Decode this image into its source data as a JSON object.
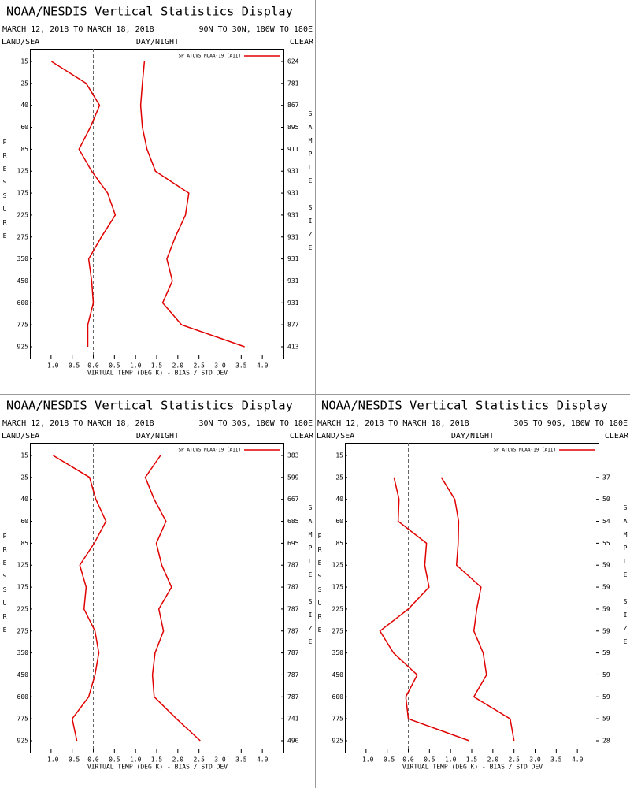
{
  "chart_data": [
    {
      "type": "line",
      "title": "NOAA/NESDIS Vertical Statistics Display",
      "subtitle": "MARCH 12, 2018 TO MARCH 18, 2018",
      "region": "90N TO 30N, 180W TO 180E",
      "land_sea": "LAND/SEA",
      "day_night": "DAY/NIGHT",
      "clear": "CLEAR",
      "xlabel": "VIRTUAL TEMP (DEG K) - BIAS / STD DEV",
      "ylabel": "PRESSURE",
      "y2label": "SAMPLE SIZE",
      "categories": [
        15,
        25,
        40,
        60,
        85,
        125,
        175,
        225,
        275,
        350,
        450,
        600,
        775,
        925
      ],
      "sample_size": [
        624,
        781,
        867,
        895,
        911,
        931,
        931,
        931,
        931,
        931,
        931,
        931,
        877,
        413
      ],
      "series": [
        {
          "name": "SP ATOVS NOAA-19 (A11)",
          "color": "#e00000",
          "bias": [
            -0.99,
            -0.17,
            0.15,
            -0.07,
            -0.34,
            -0.04,
            0.34,
            0.52,
            0.19,
            -0.11,
            -0.04,
            0.0,
            -0.13,
            -0.13
          ],
          "std_dev": [
            1.21,
            1.16,
            1.12,
            1.16,
            1.27,
            1.47,
            2.26,
            2.18,
            1.94,
            1.74,
            1.87,
            1.64,
            2.09,
            3.58
          ]
        }
      ],
      "xlim": [
        -1.5,
        4.5
      ],
      "xticks": [
        {
          "value": -1,
          "label": "-1.0"
        },
        -0.5,
        {
          "value": 0,
          "label": "0.0"
        },
        0.5,
        {
          "value": 1,
          "label": "1.0"
        },
        1.5,
        {
          "value": 2,
          "label": "2.0"
        },
        2.5,
        {
          "value": 3,
          "label": "3.0"
        },
        3.5,
        {
          "value": 4,
          "label": "4.0"
        }
      ],
      "zero_line": true
    },
    {
      "type": "line",
      "title": "NOAA/NESDIS Vertical Statistics Display",
      "subtitle": "MARCH 12, 2018 TO MARCH 18, 2018",
      "region": "30N TO 30S, 180W TO 180E",
      "land_sea": "LAND/SEA",
      "day_night": "DAY/NIGHT",
      "clear": "CLEAR",
      "xlabel": "VIRTUAL TEMP (DEG K) - BIAS / STD DEV",
      "ylabel": "PRESSURE",
      "y2label": "SAMPLE SIZE",
      "categories": [
        15,
        25,
        40,
        60,
        85,
        125,
        175,
        225,
        275,
        350,
        450,
        600,
        775,
        925
      ],
      "sample_size": [
        383,
        599,
        667,
        685,
        695,
        787,
        787,
        787,
        787,
        787,
        787,
        787,
        741,
        490
      ],
      "series": [
        {
          "name": "SP ATOVS NOAA-19 (A11)",
          "color": "#e00000",
          "bias": [
            -0.95,
            -0.09,
            0.06,
            0.3,
            0.02,
            -0.32,
            -0.17,
            -0.22,
            0.04,
            0.13,
            0.04,
            -0.11,
            -0.5,
            -0.39
          ],
          "std_dev": [
            1.59,
            1.23,
            1.44,
            1.72,
            1.49,
            1.62,
            1.85,
            1.55,
            1.66,
            1.46,
            1.4,
            1.44,
            1.97,
            2.53
          ]
        }
      ],
      "xlim": [
        -1.5,
        4.5
      ],
      "xticks": [
        {
          "value": -1,
          "label": "-1.0"
        },
        -0.5,
        {
          "value": 0,
          "label": "0.0"
        },
        0.5,
        {
          "value": 1,
          "label": "1.0"
        },
        1.5,
        {
          "value": 2,
          "label": "2.0"
        },
        2.5,
        {
          "value": 3,
          "label": "3.0"
        },
        3.5,
        {
          "value": 4,
          "label": "4.0"
        }
      ],
      "zero_line": true
    },
    {
      "type": "line",
      "title": "NOAA/NESDIS Vertical Statistics Display",
      "subtitle": "MARCH 12, 2018 TO MARCH 18, 2018",
      "region": "30S TO 90S, 180W TO 180E",
      "land_sea": "LAND/SEA",
      "day_night": "DAY/NIGHT",
      "clear": "CLEAR",
      "xlabel": "VIRTUAL TEMP (DEG K) - BIAS / STD DEV",
      "ylabel": "PRESSURE",
      "y2label": "SAMPLE SIZE",
      "categories": [
        15,
        25,
        40,
        60,
        85,
        125,
        175,
        225,
        275,
        350,
        450,
        600,
        775,
        925
      ],
      "sample_size": [
        null,
        37,
        50,
        54,
        55,
        59,
        59,
        59,
        59,
        59,
        59,
        59,
        59,
        28
      ],
      "series": [
        {
          "name": "SP ATOVS NOAA-19 (A11)",
          "color": "#e00000",
          "bias": [
            null,
            -0.34,
            -0.22,
            -0.24,
            0.43,
            0.39,
            0.49,
            0.0,
            -0.67,
            -0.35,
            0.21,
            -0.06,
            0.0,
            1.44
          ],
          "std_dev": [
            null,
            0.78,
            1.1,
            1.19,
            1.18,
            1.14,
            1.72,
            1.62,
            1.55,
            1.77,
            1.85,
            1.55,
            2.41,
            2.5
          ]
        }
      ],
      "xlim": [
        -1.5,
        4.5
      ],
      "xticks": [
        {
          "value": -1,
          "label": "-1.0"
        },
        -0.5,
        {
          "value": 0,
          "label": "0.0"
        },
        0.5,
        {
          "value": 1,
          "label": "1.0"
        },
        1.5,
        {
          "value": 2,
          "label": "2.0"
        },
        2.5,
        {
          "value": 3,
          "label": "3.0"
        },
        3.5,
        {
          "value": 4,
          "label": "4.0"
        }
      ],
      "zero_line": true
    }
  ]
}
